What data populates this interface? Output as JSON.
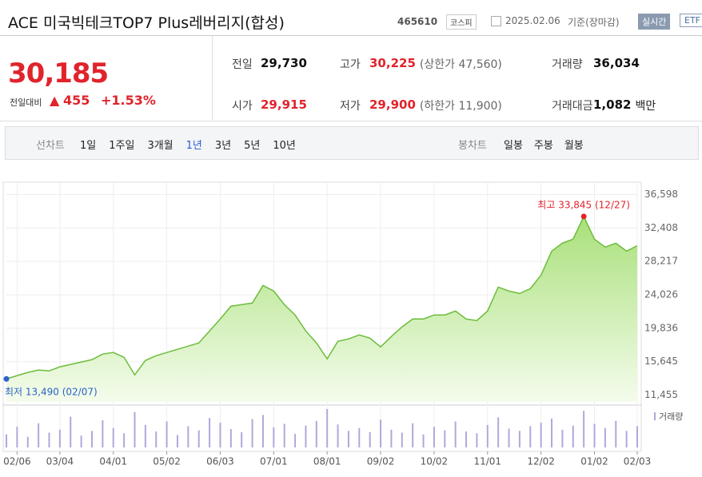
{
  "header": {
    "title": "ACE 미국빅테크TOP7 Plus레버리지(합성)",
    "code": "465610",
    "market": "코스피",
    "date": "2025.02.06",
    "basis": "기준(장마감)",
    "buttons": [
      "실시간",
      "ETF"
    ]
  },
  "quote": {
    "price": "30,185",
    "change_label": "전일대비",
    "change": "455",
    "change_pct": "+1.53%",
    "rows": [
      [
        {
          "label": "전일",
          "value": "29,730"
        },
        {
          "label": "고가",
          "value": "30,225",
          "note": "(상한가 47,560)"
        },
        {
          "label": "거래량",
          "value": "36,034"
        }
      ],
      [
        {
          "label": "시가",
          "value": "29,915"
        },
        {
          "label": "저가",
          "value": "29,900",
          "note": "(하한가 11,900)"
        },
        {
          "label": "거래대금",
          "value": "1,082",
          "unit": "백만"
        }
      ]
    ]
  },
  "tabs": {
    "line_label": "선차트",
    "line": [
      "1일",
      "1주일",
      "3개월",
      "1년",
      "3년",
      "5년",
      "10년"
    ],
    "active": "1년",
    "candle_label": "봉차트",
    "candle": [
      "일봉",
      "주봉",
      "월봉"
    ]
  },
  "chart_data": {
    "type": "line",
    "categories": [
      null,
      "02/06",
      null,
      null,
      null,
      "03/04",
      null,
      null,
      null,
      null,
      "04/01",
      null,
      null,
      null,
      null,
      "05/02",
      null,
      null,
      null,
      null,
      "06/03",
      null,
      null,
      null,
      null,
      "07/01",
      null,
      null,
      null,
      null,
      "08/01",
      null,
      null,
      null,
      null,
      "09/02",
      null,
      null,
      null,
      null,
      "10/02",
      null,
      null,
      null,
      null,
      "11/01",
      null,
      null,
      null,
      null,
      "12/02",
      null,
      null,
      null,
      null,
      "01/02",
      null,
      null,
      null,
      "02/03"
    ],
    "series": [
      {
        "color": "#6cbd3c",
        "values": [
          13490,
          13900,
          14300,
          14600,
          14500,
          15000,
          15300,
          15600,
          15900,
          16600,
          16800,
          16200,
          14000,
          15800,
          16400,
          16800,
          17200,
          17600,
          18000,
          19500,
          21000,
          22600,
          22800,
          23000,
          25200,
          24500,
          22800,
          21500,
          19500,
          18000,
          16000,
          18200,
          18500,
          19000,
          18600,
          17500,
          18800,
          20000,
          21000,
          21000,
          21500,
          21500,
          22000,
          21000,
          20800,
          22000,
          25000,
          24500,
          24200,
          24800,
          26500,
          29500,
          30500,
          31000,
          33845,
          31000,
          30000,
          30500,
          29500,
          30185
        ]
      },
      {
        "name": "거래량",
        "color": "#b3a6dd",
        "axis": "y2",
        "values": [
          22000,
          35000,
          18000,
          41000,
          25000,
          30000,
          52000,
          20000,
          28000,
          46000,
          33000,
          24000,
          60000,
          38000,
          27000,
          44000,
          21000,
          36000,
          29000,
          50000,
          42000,
          31000,
          26000,
          48000,
          55000,
          34000,
          40000,
          23000,
          37000,
          45000,
          65000,
          39000,
          28000,
          33000,
          26000,
          47000,
          30000,
          25000,
          41000,
          22000,
          35000,
          29000,
          44000,
          27000,
          24000,
          38000,
          51000,
          32000,
          28000,
          36000,
          42000,
          49000,
          30000,
          37000,
          62000,
          40000,
          33000,
          45000,
          28000,
          36034
        ]
      }
    ],
    "ylim": [
      10610,
      37443
    ],
    "yticks": [
      {
        "value": 36598,
        "label": "36,598"
      },
      {
        "value": 32408,
        "label": "32,408"
      },
      {
        "value": 28217,
        "label": "28,217"
      },
      {
        "value": 24026,
        "label": "24,026"
      },
      {
        "value": 19836,
        "label": "19,836"
      },
      {
        "value": 15645,
        "label": "15,645"
      },
      {
        "value": 11455,
        "label": "11,455"
      }
    ],
    "annotations": [
      {
        "text": "최고 33,845 (12/27)",
        "index": 54
      },
      {
        "text": "최저 13,490 (02/07)",
        "index": 0
      }
    ],
    "grid": true
  }
}
